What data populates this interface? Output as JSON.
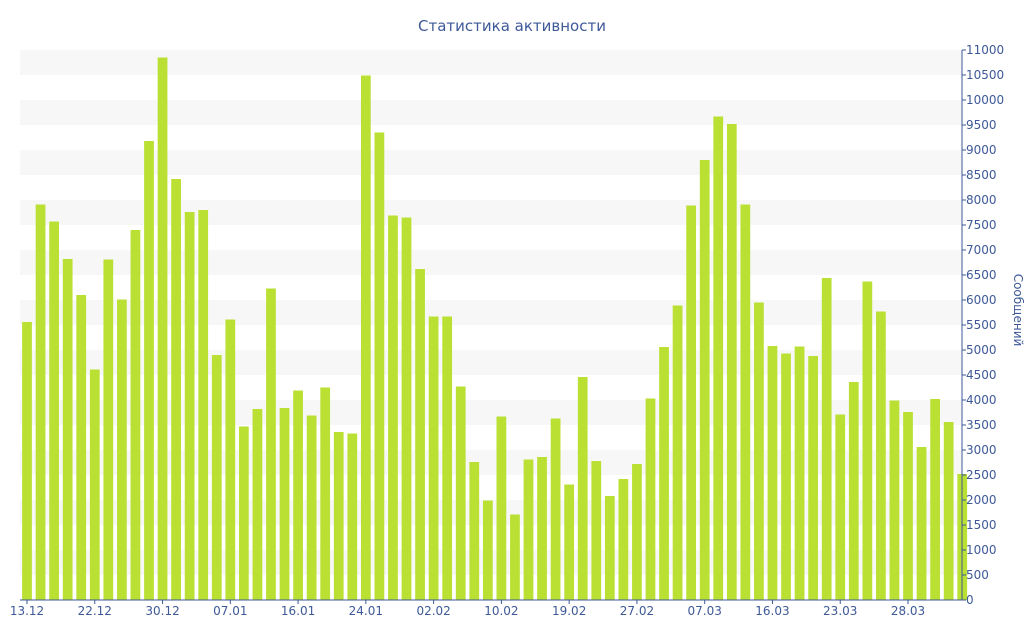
{
  "chart_data": {
    "type": "bar",
    "title": "Статистика активности",
    "xlabel": "",
    "ylabel": "Сообщений",
    "ylim": [
      0,
      11000
    ],
    "ytick_step": 500,
    "y_axis_side": "right",
    "grid": "horizontal alternating bands",
    "legend": "none",
    "x_tick_labels": [
      {
        "index": 0,
        "label": "13.12"
      },
      {
        "index": 5,
        "label": "22.12"
      },
      {
        "index": 10,
        "label": "30.12"
      },
      {
        "index": 15,
        "label": "07.01"
      },
      {
        "index": 20,
        "label": "16.01"
      },
      {
        "index": 25,
        "label": "24.01"
      },
      {
        "index": 30,
        "label": "02.02"
      },
      {
        "index": 35,
        "label": "10.02"
      },
      {
        "index": 40,
        "label": "19.02"
      },
      {
        "index": 45,
        "label": "27.02"
      },
      {
        "index": 50,
        "label": "07.03"
      },
      {
        "index": 55,
        "label": "16.03"
      },
      {
        "index": 60,
        "label": "23.03"
      },
      {
        "index": 65,
        "label": "28.03"
      }
    ],
    "values": [
      5560,
      7910,
      7570,
      6820,
      6100,
      4610,
      6810,
      6010,
      7400,
      9180,
      10850,
      8420,
      7760,
      7800,
      4900,
      5610,
      3470,
      3820,
      6230,
      3840,
      4190,
      3690,
      4250,
      3360,
      3330,
      10490,
      9350,
      7690,
      7650,
      6620,
      5670,
      5670,
      4270,
      2760,
      1990,
      3670,
      1710,
      2810,
      2860,
      3630,
      2310,
      4460,
      2780,
      2080,
      2420,
      2720,
      4030,
      5060,
      5890,
      7890,
      8800,
      9670,
      9520,
      7910,
      5950,
      5080,
      4930,
      5070,
      4880,
      6440,
      3710,
      4360,
      6370,
      5770,
      3990,
      3760,
      3060,
      4020,
      3560,
      2520
    ],
    "colors": {
      "bar": "#bae033",
      "text": "#3e5998",
      "band": "#f7f7f7",
      "axis": "#3e5998"
    }
  }
}
